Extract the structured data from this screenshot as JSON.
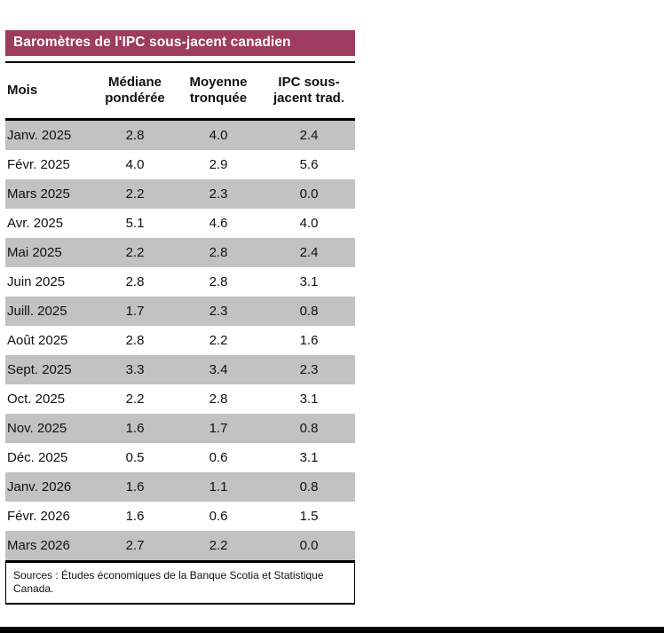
{
  "title": "Baromètres de l'IPC sous-jacent canadien",
  "table": {
    "columns": [
      "Mois",
      "Médiane pondérée",
      "Moyenne tronquée",
      "IPC sous-jacent trad."
    ],
    "rows": [
      [
        "Janv. 2025",
        "2.8",
        "4.0",
        "2.4"
      ],
      [
        "Févr. 2025",
        "4.0",
        "2.9",
        "5.6"
      ],
      [
        "Mars 2025",
        "2.2",
        "2.3",
        "0.0"
      ],
      [
        "Avr. 2025",
        "5.1",
        "4.6",
        "4.0"
      ],
      [
        "Mai 2025",
        "2.2",
        "2.8",
        "2.4"
      ],
      [
        "Juin 2025",
        "2.8",
        "2.8",
        "3.1"
      ],
      [
        "Juill. 2025",
        "1.7",
        "2.3",
        "0.8"
      ],
      [
        "Août 2025",
        "2.8",
        "2.2",
        "1.6"
      ],
      [
        "Sept. 2025",
        "3.3",
        "3.4",
        "2.3"
      ],
      [
        "Oct. 2025",
        "2.2",
        "2.8",
        "3.1"
      ],
      [
        "Nov. 2025",
        "1.6",
        "1.7",
        "0.8"
      ],
      [
        "Déc. 2025",
        "0.5",
        "0.6",
        "3.1"
      ],
      [
        "Janv. 2026",
        "1.6",
        "1.1",
        "0.8"
      ],
      [
        "Févr. 2026",
        "1.6",
        "0.6",
        "1.5"
      ],
      [
        "Mars 2026",
        "2.7",
        "2.2",
        "0.0"
      ]
    ]
  },
  "footer": "Sources : Études économiques de la Banque Scotia et Statistique Canada.",
  "colors": {
    "title_bg": "#9d3c5e",
    "title_text": "#ffffff",
    "row_alt": "#c2c2c2",
    "border": "#000000"
  },
  "chart_data": {
    "type": "table",
    "title": "Baromètres de l'IPC sous-jacent canadien",
    "columns": [
      "Mois",
      "Médiane pondérée",
      "Moyenne tronquée",
      "IPC sous-jacent trad."
    ],
    "rows": [
      [
        "Janv. 2025",
        2.8,
        4.0,
        2.4
      ],
      [
        "Févr. 2025",
        4.0,
        2.9,
        5.6
      ],
      [
        "Mars 2025",
        2.2,
        2.3,
        0.0
      ],
      [
        "Avr. 2025",
        5.1,
        4.6,
        4.0
      ],
      [
        "Mai 2025",
        2.2,
        2.8,
        2.4
      ],
      [
        "Juin 2025",
        2.8,
        2.8,
        3.1
      ],
      [
        "Juill. 2025",
        1.7,
        2.3,
        0.8
      ],
      [
        "Août 2025",
        2.8,
        2.2,
        1.6
      ],
      [
        "Sept. 2025",
        3.3,
        3.4,
        2.3
      ],
      [
        "Oct. 2025",
        2.2,
        2.8,
        3.1
      ],
      [
        "Nov. 2025",
        1.6,
        1.7,
        0.8
      ],
      [
        "Déc. 2025",
        0.5,
        0.6,
        3.1
      ],
      [
        "Janv. 2026",
        1.6,
        1.1,
        0.8
      ],
      [
        "Févr. 2026",
        1.6,
        0.6,
        1.5
      ],
      [
        "Mars 2026",
        2.7,
        2.2,
        0.0
      ]
    ],
    "source": "Sources : Études économiques de la Banque Scotia et Statistique Canada.",
    "layout": {
      "alt_row_shading": true,
      "first_data_row_shaded": true
    }
  }
}
